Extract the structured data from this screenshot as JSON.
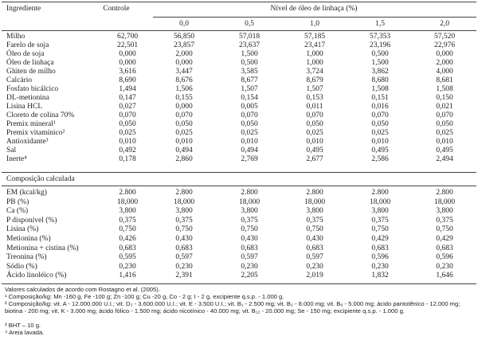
{
  "header": {
    "ingredient": "Ingrediente",
    "control": "Controle",
    "level": "Nível de óleo de linhaça (%)",
    "levels": [
      "0,0",
      "0,5",
      "1,0",
      "1,5",
      "2,0"
    ]
  },
  "table": {
    "rows": [
      [
        "Milho",
        "62,700",
        "56,850",
        "57,018",
        "57,185",
        "57,353",
        "57,520"
      ],
      [
        "Farelo de soja",
        "22,501",
        "23,857",
        "23,637",
        "23,417",
        "23,196",
        "22,976"
      ],
      [
        "Óleo de soja",
        "0,000",
        "2,000",
        "1,500",
        "1,000",
        "0,500",
        "0,000"
      ],
      [
        "Óleo de linhaça",
        "0,000",
        "0,000",
        "0,500",
        "1,000",
        "1,500",
        "2,000"
      ],
      [
        "Glúten de milho",
        "3,616",
        "3,447",
        "3,585",
        "3,724",
        "3,862",
        "4,000"
      ],
      [
        "Calcário",
        "8,690",
        "8,676",
        "8,677",
        "8,679",
        "8,680",
        "8,681"
      ],
      [
        "Fosfato bicálcico",
        "1,494",
        "1,506",
        "1,507",
        "1,507",
        "1,508",
        "1,508"
      ],
      [
        "DL-metionina",
        "0,147",
        "0,155",
        "0,154",
        "0,153",
        "0,151",
        "0,150"
      ],
      [
        "Lisina HCL",
        "0,027",
        "0,000",
        "0,005",
        "0,011",
        "0,016",
        "0,021"
      ],
      [
        "Cloreto de colina 70%",
        "0,070",
        "0,070",
        "0,070",
        "0,070",
        "0,070",
        "0,070"
      ],
      [
        "Premix mineral¹",
        "0,050",
        "0,050",
        "0,050",
        "0,050",
        "0,050",
        "0,050"
      ],
      [
        "Premix vitamínico²",
        "0,025",
        "0,025",
        "0,025",
        "0,025",
        "0,025",
        "0,025"
      ],
      [
        "Antioxidante³",
        "0,010",
        "0,010",
        "0,010",
        "0,010",
        "0,010",
        "0,010"
      ],
      [
        "Sal",
        "0,492",
        "0,494",
        "0,494",
        "0,495",
        "0,495",
        "0,495"
      ],
      [
        "Inerte⁴",
        "0,178",
        "2,860",
        "2,769",
        "2,677",
        "2,586",
        "2,494"
      ]
    ],
    "section": "Composição calculada",
    "composition_rows": [
      [
        "EM (kcal/kg)",
        "2.800",
        "2.800",
        "2.800",
        "2.800",
        "2.800",
        "2.800"
      ],
      [
        "PB (%)",
        "18,000",
        "18,000",
        "18,000",
        "18,000",
        "18,000",
        "18,000"
      ],
      [
        "Ca (%)",
        "3,800",
        "3,800",
        "3,800",
        "3,800",
        "3,800",
        "3,800"
      ],
      [
        "P disponível (%)",
        "0,375",
        "0,375",
        "0,375",
        "0,375",
        "0,375",
        "0,375"
      ],
      [
        "Lisina (%)",
        "0,750",
        "0,750",
        "0,750",
        "0,750",
        "0,750",
        "0,750"
      ],
      [
        "Metionina (%)",
        "0,426",
        "0,430",
        "0,430",
        "0,430",
        "0,429",
        "0,429"
      ],
      [
        "Metionina + cistina (%)",
        "0,683",
        "0,683",
        "0,683",
        "0,683",
        "0,683",
        "0,683"
      ],
      [
        "Treonina (%)",
        "0,595",
        "0,597",
        "0,597",
        "0,597",
        "0,596",
        "0,596"
      ],
      [
        "Sódio (%)",
        "0,230",
        "0,230",
        "0,230",
        "0,230",
        "0,230",
        "0,230"
      ],
      [
        "Ácido linoléico (%)",
        "1,416",
        "2,391",
        "2,205",
        "2,019",
        "1,832",
        "1,646"
      ]
    ]
  },
  "footnotes": [
    "Valores calculados de acordo com Rostagno et al. (2005).",
    "¹ Composição/kg: Mn -160 g, Fe -100 g; Zn -100 g; Cu -20 g, Co - 2 g; I - 2 g, excipiente q.s.p. - 1.000 g.",
    "² Composição/kg: vit. A - 12.000.000 U.I.; vit. D₃ - 3.600.000 U.I.; vit. E - 3.500 U.I.; vit. B₁ - 2.500 mg; vit. B₂ - 8.000 mg; vit. B₆ - 5.000 mg; ácido pantotênico - 12.000 mg; biotina - 200 mg; vit. K - 3.000 mg; ácido fólico - 1.500 mg; ácido nicotínico - 40.000 mg; vit. B₁₂ - 20.000 mg; Se - 150 mg; excipiente q.s.p. - 1.000 g.",
    "³ BHT – 10 g.",
    "⁴ Areia lavada."
  ]
}
